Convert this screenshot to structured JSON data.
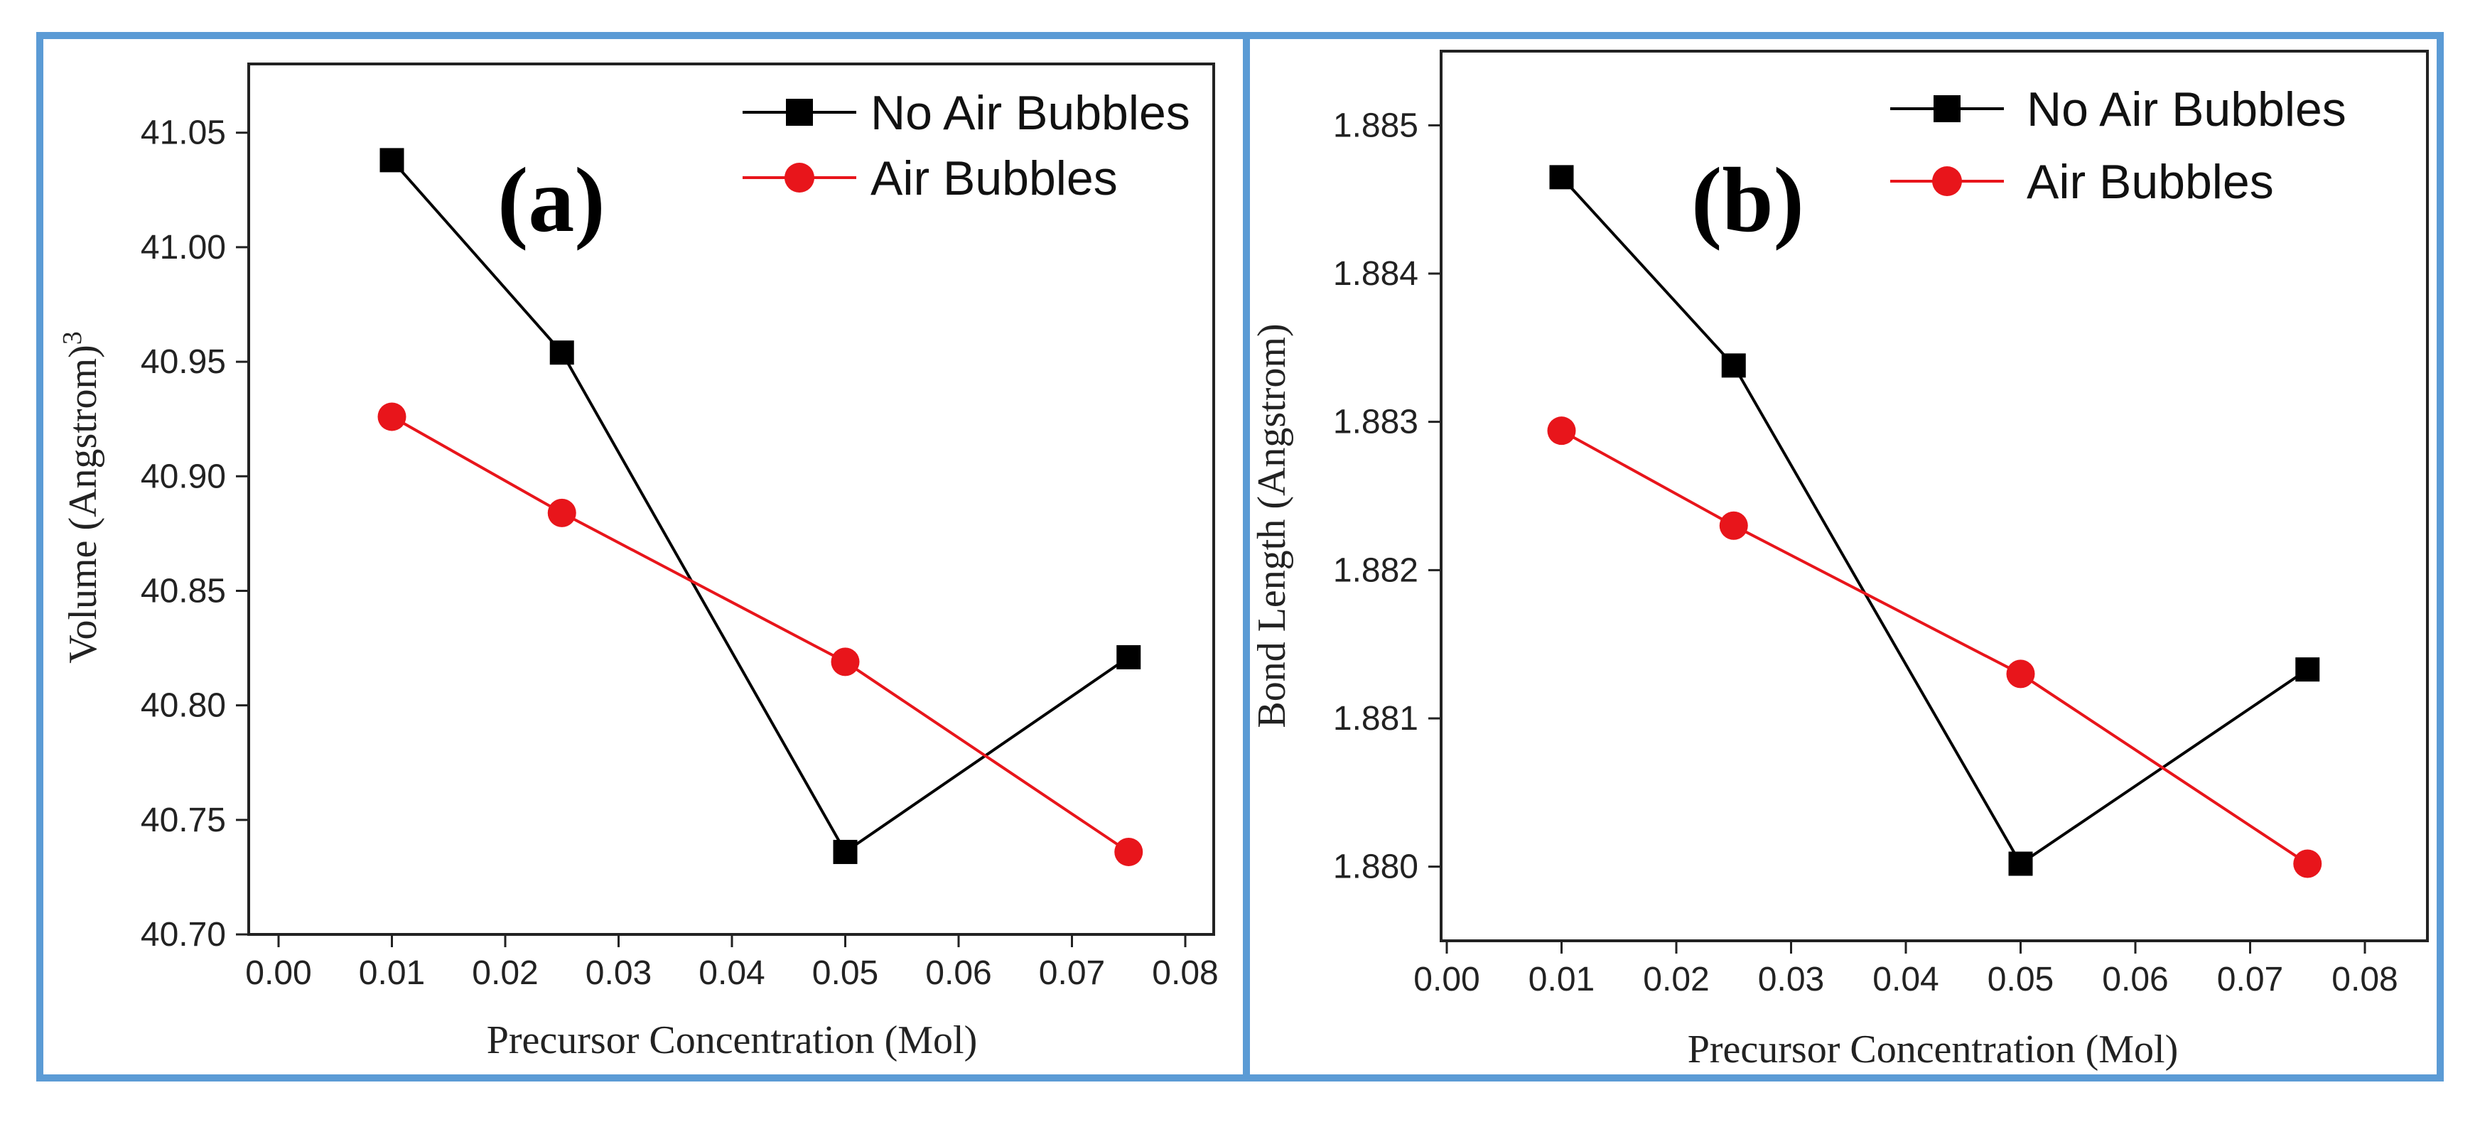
{
  "chart_data": [
    {
      "type": "line",
      "panel_label": "(a)",
      "xlabel": "Precursor Concentration (Mol)",
      "ylabel": "Volume (Angstrom)",
      "ylabel_superscript": "3",
      "xlim": [
        0.0,
        0.085
      ],
      "ylim": [
        40.7,
        41.08
      ],
      "xticks": [
        "0.00",
        "0.01",
        "0.02",
        "0.03",
        "0.04",
        "0.05",
        "0.06",
        "0.07",
        "0.08"
      ],
      "yticks": [
        "40.70",
        "40.75",
        "40.80",
        "40.85",
        "40.90",
        "40.95",
        "41.00",
        "41.05"
      ],
      "x": [
        0.01,
        0.025,
        0.05,
        0.075
      ],
      "series": [
        {
          "name": "No Air Bubbles",
          "values": [
            41.038,
            40.954,
            40.736,
            40.821
          ],
          "color": "#000000",
          "marker": "square"
        },
        {
          "name": "Air Bubbles",
          "values": [
            40.926,
            40.884,
            40.819,
            40.736
          ],
          "color": "#e8151b",
          "marker": "circle"
        }
      ],
      "legend_position": "top-right"
    },
    {
      "type": "line",
      "panel_label": "(b)",
      "xlabel": "Precursor Concentration (Mol)",
      "ylabel": "Bond Length (Angstrom)",
      "xlim": [
        0.0,
        0.085
      ],
      "ylim": [
        1.8795,
        1.8855
      ],
      "xticks": [
        "0.00",
        "0.01",
        "0.02",
        "0.03",
        "0.04",
        "0.05",
        "0.06",
        "0.07",
        "0.08"
      ],
      "yticks": [
        "1.880",
        "1.881",
        "1.882",
        "1.883",
        "1.884",
        "1.885"
      ],
      "x": [
        0.01,
        0.025,
        0.05,
        0.075
      ],
      "series": [
        {
          "name": "No Air Bubbles",
          "values": [
            1.88465,
            1.88338,
            1.88002,
            1.88133
          ],
          "color": "#000000",
          "marker": "square"
        },
        {
          "name": "Air Bubbles",
          "values": [
            1.88294,
            1.8823,
            1.8813,
            1.88002
          ],
          "color": "#e8151b",
          "marker": "circle"
        }
      ],
      "legend_position": "top-right"
    }
  ],
  "frame_color": "#5b9bd5"
}
